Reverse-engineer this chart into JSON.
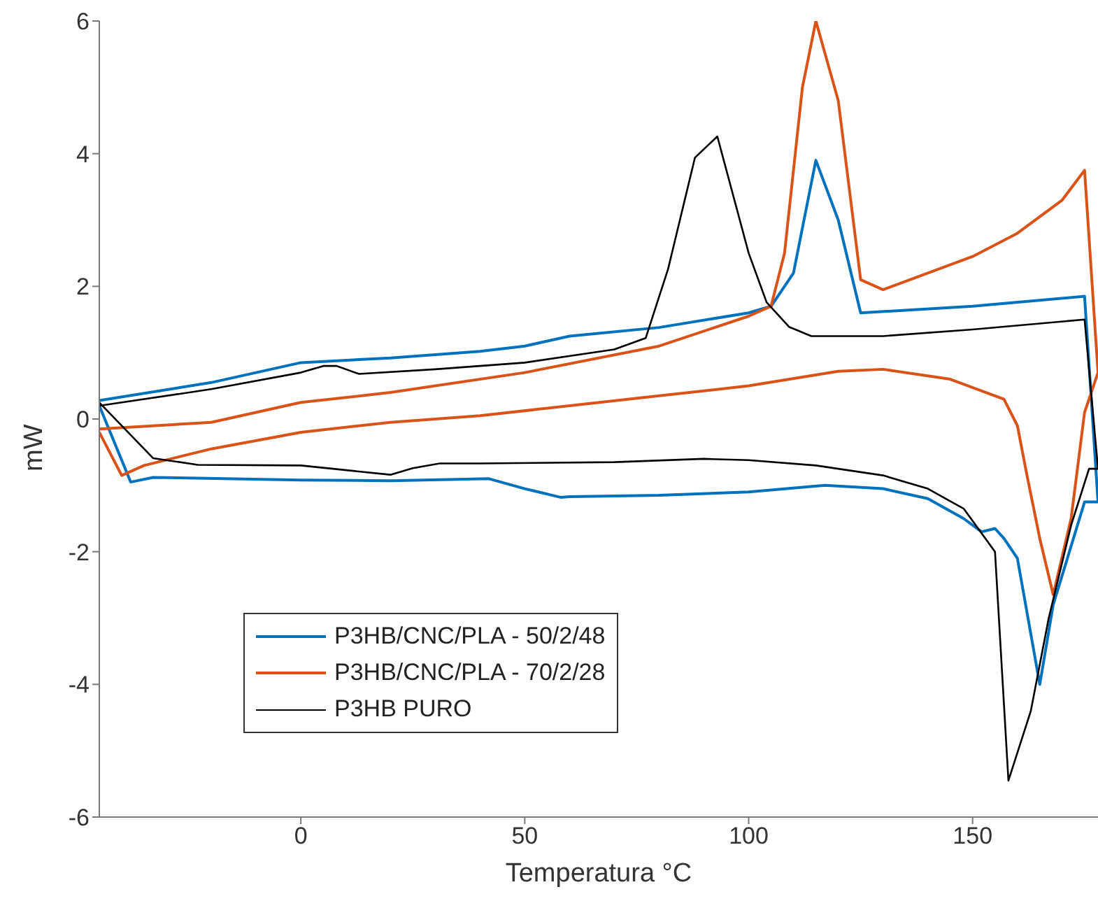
{
  "chart_data": {
    "type": "line",
    "xlabel": "Temperatura °C",
    "ylabel": "mW",
    "xlim": [
      -45,
      178
    ],
    "xticks": [
      0,
      50,
      100,
      150
    ],
    "ylim": [
      -6,
      6
    ],
    "yticks": [
      -6,
      -4,
      -2,
      0,
      2,
      4,
      6
    ],
    "grid": false,
    "legend": "bottom left",
    "marker": "none",
    "line_style": "solid",
    "series": [
      {
        "name": "P3HB/CNC/PLA - 50/2/48",
        "color": "#0072bd",
        "x": [
          -45,
          -20,
          0,
          20,
          40,
          50,
          60,
          80,
          100,
          105,
          110,
          115,
          120,
          125,
          150,
          175,
          178,
          175,
          168,
          165,
          160,
          157,
          155,
          152,
          148,
          140,
          130,
          117,
          100,
          80,
          60,
          58,
          50,
          42,
          20,
          0,
          -33,
          -38,
          -45
        ],
        "values": [
          0.28,
          0.55,
          0.85,
          0.92,
          1.02,
          1.1,
          1.25,
          1.38,
          1.6,
          1.7,
          2.2,
          3.9,
          3.0,
          1.6,
          1.7,
          1.85,
          -1.25,
          -1.25,
          -2.8,
          -4.0,
          -2.1,
          -1.8,
          -1.65,
          -1.7,
          -1.5,
          -1.2,
          -1.05,
          -1.0,
          -1.1,
          -1.15,
          -1.17,
          -1.18,
          -1.05,
          -0.9,
          -0.93,
          -0.92,
          -0.88,
          -0.95,
          0.2
        ]
      },
      {
        "name": "P3HB/CNC/PLA - 70/2/28",
        "color": "#d95319",
        "x": [
          -45,
          -20,
          0,
          20,
          50,
          80,
          100,
          105,
          108,
          112,
          115,
          120,
          125,
          130,
          150,
          160,
          170,
          175,
          178,
          175,
          172,
          168,
          165,
          162,
          160,
          157,
          153,
          145,
          130,
          120,
          100,
          80,
          60,
          40,
          20,
          0,
          -20,
          -35,
          -40,
          -45
        ],
        "values": [
          -0.15,
          -0.05,
          0.25,
          0.4,
          0.7,
          1.1,
          1.55,
          1.7,
          2.5,
          5.0,
          6.0,
          4.8,
          2.1,
          1.95,
          2.45,
          2.8,
          3.3,
          3.75,
          0.7,
          0.1,
          -1.5,
          -2.65,
          -1.8,
          -0.8,
          -0.1,
          0.3,
          0.4,
          0.6,
          0.75,
          0.72,
          0.5,
          0.35,
          0.2,
          0.05,
          -0.05,
          -0.2,
          -0.45,
          -0.7,
          -0.85,
          -0.2
        ]
      },
      {
        "name": "P3HB PURO",
        "color": "#000000",
        "x": [
          -45,
          -20,
          0,
          5,
          8,
          13,
          30,
          50,
          70,
          77,
          82,
          88,
          93,
          100,
          104,
          109,
          114,
          130,
          150,
          175,
          178,
          176,
          172,
          167,
          163,
          158,
          155,
          148,
          140,
          130,
          115,
          100,
          90,
          70,
          40,
          31,
          25,
          20,
          0,
          -23,
          -33,
          -45
        ],
        "values": [
          0.2,
          0.45,
          0.7,
          0.8,
          0.8,
          0.68,
          0.75,
          0.85,
          1.05,
          1.22,
          2.26,
          3.94,
          4.26,
          2.5,
          1.76,
          1.39,
          1.25,
          1.25,
          1.35,
          1.5,
          -0.75,
          -0.75,
          -1.6,
          -3.0,
          -4.4,
          -5.45,
          -2.0,
          -1.35,
          -1.05,
          -0.85,
          -0.7,
          -0.62,
          -0.6,
          -0.65,
          -0.67,
          -0.67,
          -0.74,
          -0.84,
          -0.7,
          -0.69,
          -0.59,
          0.25
        ]
      }
    ]
  }
}
